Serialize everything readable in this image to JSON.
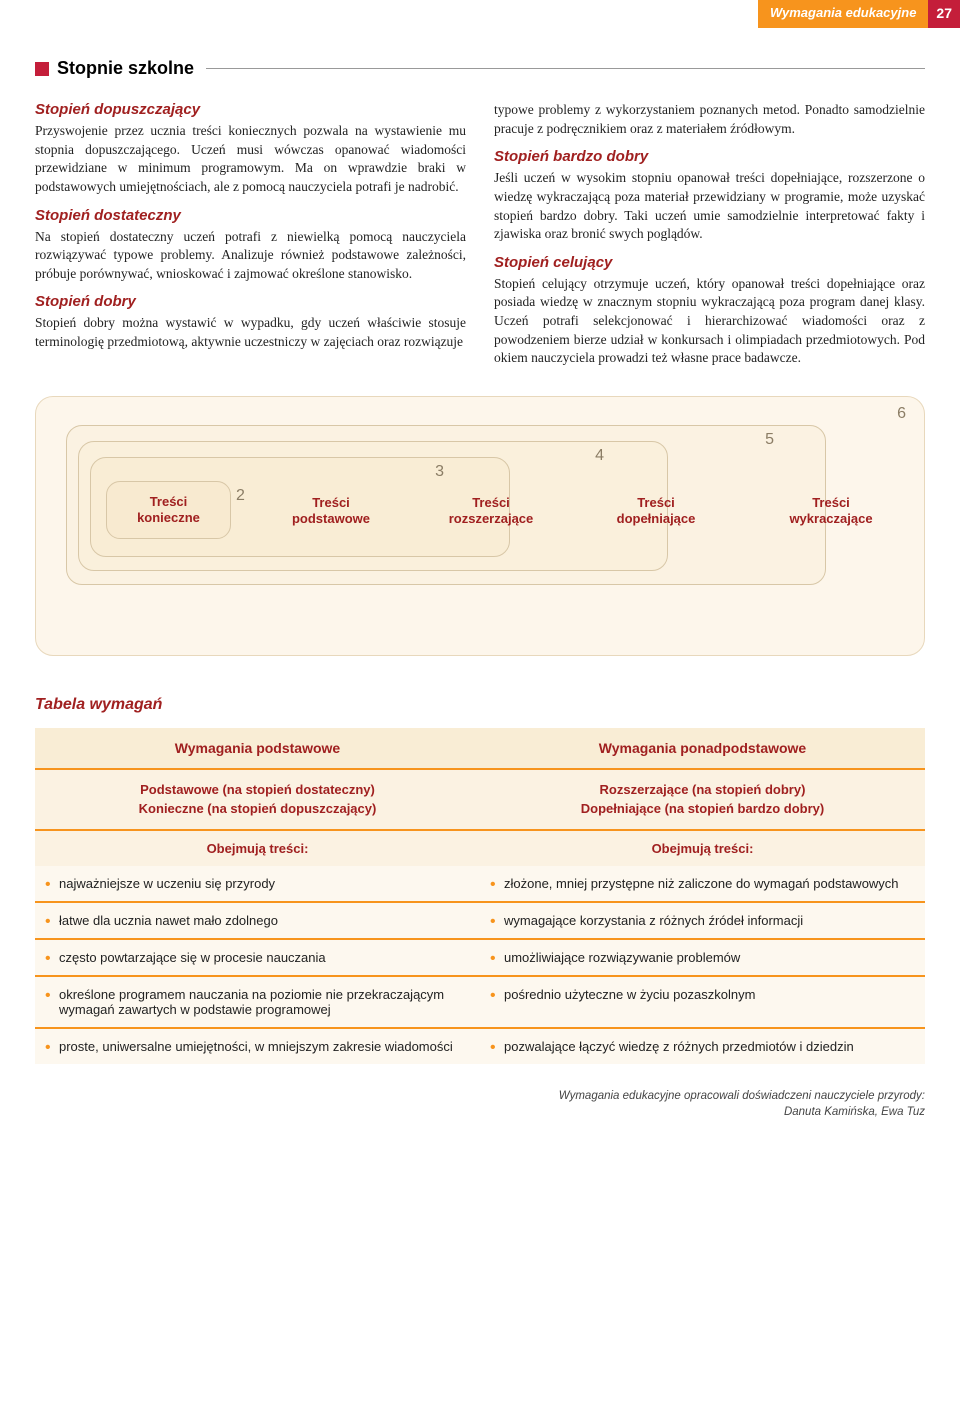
{
  "header": {
    "label": "Wymagania edukacyjne",
    "page": "27"
  },
  "section_title": "Stopnie szkolne",
  "left_col": {
    "h1": "Stopień dopuszczający",
    "p1": "Przyswojenie przez ucznia treści koniecznych pozwala na wystawienie mu stopnia dopuszczającego. Uczeń musi wówczas opanować wiadomości przewidziane w minimum programowym. Ma on wprawdzie braki w podstawowych umiejętnościach, ale z pomocą nauczyciela potrafi je nadrobić.",
    "h2": "Stopień dostateczny",
    "p2": "Na stopień dostateczny uczeń potrafi z niewielką pomocą nauczyciela rozwiązywać typowe problemy. Analizuje również podstawowe zależności, próbuje porównywać, wnioskować i zajmować określone stanowisko.",
    "h3": "Stopień dobry",
    "p3": "Stopień dobry można wystawić w wypadku, gdy uczeń właściwie stosuje terminologię przedmiotową, aktywnie uczestniczy w zajęciach oraz rozwiązuje"
  },
  "right_col": {
    "p0": "typowe problemy z wykorzystaniem poznanych metod. Ponadto samodzielnie pracuje z podręcznikiem oraz z materiałem źródłowym.",
    "h1": "Stopień bardzo dobry",
    "p1": "Jeśli uczeń w wysokim stopniu opanował treści dopełniające, rozszerzone o wiedzę wykraczającą poza materiał przewidziany w programie, może uzyskać stopień bardzo dobry. Taki uczeń umie samodzielnie interpretować fakty i zjawiska oraz bronić swych poglądów.",
    "h2": "Stopień celujący",
    "p2": "Stopień celujący otrzymuje uczeń, który opanował treści dopełniające oraz posiada wiedzę w znacznym stopniu wykraczającą poza program danej klasy. Uczeń potrafi selekcjonować i hierarchizować wiadomości oraz z powodzeniem bierze udział w konkursach i olimpiadach przedmiotowych. Pod okiem nauczyciela prowadzi też własne prace badawcze."
  },
  "diagram": {
    "n2": "2",
    "n3": "3",
    "n4": "4",
    "n5": "5",
    "n6": "6",
    "l2a": "Treści",
    "l2b": "konieczne",
    "l3a": "Treści",
    "l3b": "podstawowe",
    "l4a": "Treści",
    "l4b": "rozszerzające",
    "l5a": "Treści",
    "l5b": "dopełniające",
    "l6a": "Treści",
    "l6b": "wykraczające"
  },
  "table": {
    "title": "Tabela wymagań",
    "h1a": "Wymagania podstawowe",
    "h1b": "Wymagania ponadpodstawowe",
    "h2a1": "Podstawowe (na stopień dostateczny)",
    "h2a2": "Konieczne (na stopień dopuszczający)",
    "h2b1": "Rozszerzające (na stopień dobry)",
    "h2b2": "Dopełniające (na stopień bardzo dobry)",
    "h3": "Obejmują treści:",
    "rows": [
      {
        "a": "najważniejsze w uczeniu się przyrody",
        "b": "złożone, mniej przystępne niż zaliczone do wymagań podstawowych"
      },
      {
        "a": "łatwe dla ucznia nawet mało zdolnego",
        "b": "wymagające korzystania z różnych źródeł informacji"
      },
      {
        "a": "często powtarzające się w procesie nauczania",
        "b": "umożliwiające rozwiązywanie problemów"
      },
      {
        "a": "określone programem nauczania na poziomie nie przekraczającym wymagań zawartych w podstawie programowej",
        "b": "pośrednio użyteczne w życiu pozaszkolnym"
      },
      {
        "a": "proste, uniwersalne umiejętności, w mniejszym zakresie wiadomości",
        "b": "pozwalające łączyć wiedzę z różnych przedmiotów i dziedzin"
      }
    ]
  },
  "footer": {
    "l1": "Wymagania edukacyjne opracowali doświadczeni nauczyciele przyrody:",
    "l2": "Danuta Kamińska, Ewa Tuz"
  }
}
